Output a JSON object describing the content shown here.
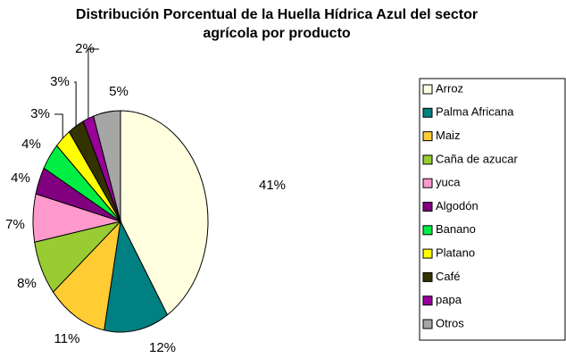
{
  "chart_data": {
    "type": "pie",
    "title": [
      "Distribución Porcentual de la Huella Hídrica Azul del sector",
      "agrícola por producto"
    ],
    "categories": [
      "Arroz",
      "Palma Africana",
      "Maiz",
      "Caña de azucar",
      "yuca",
      "Algodón",
      "Banano",
      "Platano",
      "Café",
      "papa",
      "Otros"
    ],
    "values": [
      41,
      12,
      11,
      8,
      7,
      4,
      4,
      3,
      3,
      2,
      5
    ],
    "value_labels": [
      "41%",
      "12%",
      "11%",
      "8%",
      "7%",
      "4%",
      "4%",
      "3%",
      "3%",
      "2%",
      "5%"
    ],
    "colors": [
      "#ffffe0",
      "#008080",
      "#ffcc33",
      "#99cc33",
      "#ff99cc",
      "#800080",
      "#00ee44",
      "#ffff00",
      "#333300",
      "#990099",
      "#a6a6a6"
    ],
    "legend": "right"
  }
}
